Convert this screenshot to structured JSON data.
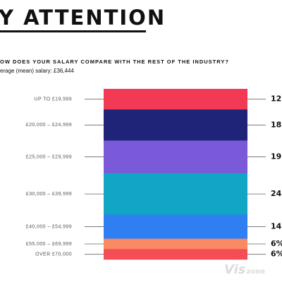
{
  "header": {
    "title": "Y ATTENTION",
    "question": "OW DOES YOUR SALARY COMPARE WITH THE REST OF THE INDUSTRY?",
    "average": "erage (mean) salary: £36,444"
  },
  "chart_data": {
    "type": "bar",
    "title": "",
    "categories": [
      "UP TO £19,999",
      "£20,000 – £24,999",
      "£25,000 – £29,999",
      "£30,000 – £39,999",
      "£40,000 – £54,999",
      "£55,000 – £69,999",
      "OVER £70,000"
    ],
    "values": [
      12,
      18,
      19,
      24,
      14,
      6,
      6
    ],
    "value_labels": [
      "12",
      "18",
      "19",
      "24",
      "14",
      "6%",
      "6%"
    ],
    "colors": [
      "#f23a54",
      "#1f2478",
      "#7a5ad8",
      "#10a6c4",
      "#2f7ff2",
      "#f98a63",
      "#f44d56"
    ],
    "label_line_color": "#666666"
  },
  "watermark": {
    "part1": "Vis",
    "part2": "zone"
  }
}
